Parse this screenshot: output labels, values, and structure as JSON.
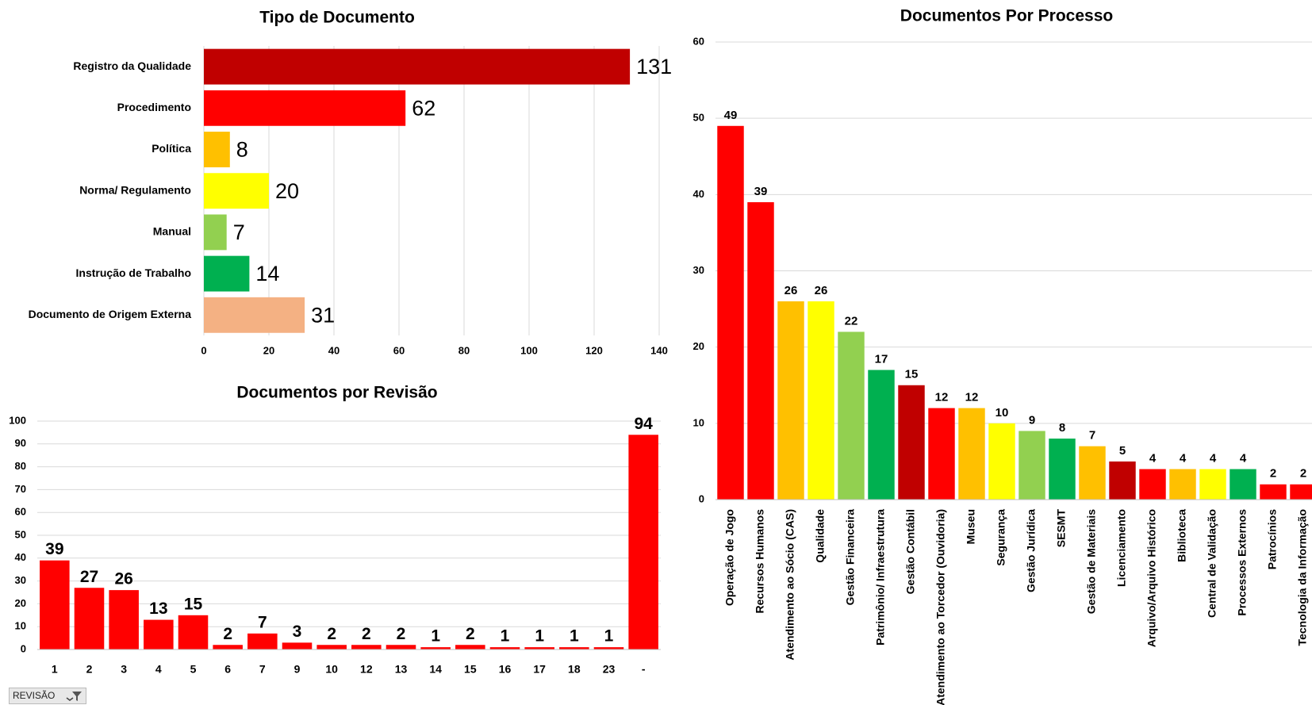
{
  "chart_data": [
    {
      "type": "barh",
      "title": "Tipo de Documento",
      "categories": [
        "Registro da Qualidade",
        "Procedimento",
        "Política",
        "Norma/ Regulamento",
        "Manual",
        "Instrução de Trabalho",
        "Documento de Origem Externa"
      ],
      "values": [
        131,
        62,
        8,
        20,
        7,
        14,
        31
      ],
      "colors": [
        "#c00000",
        "#ff0000",
        "#ffc000",
        "#ffff00",
        "#92d050",
        "#00b050",
        "#f4b183"
      ],
      "xlim": [
        0,
        140
      ],
      "xticks": [
        0,
        20,
        40,
        60,
        80,
        100,
        120,
        140
      ],
      "grid": true
    },
    {
      "type": "bar",
      "title": "Documentos por Revisão",
      "categories": [
        "1",
        "2",
        "3",
        "4",
        "5",
        "6",
        "7",
        "9",
        "10",
        "12",
        "13",
        "14",
        "15",
        "16",
        "17",
        "18",
        "23",
        "-"
      ],
      "values": [
        39,
        27,
        26,
        13,
        15,
        2,
        7,
        3,
        2,
        2,
        2,
        1,
        2,
        1,
        1,
        1,
        1,
        94
      ],
      "color": "#ff0000",
      "ylim": [
        0,
        100
      ],
      "yticks": [
        0,
        10,
        20,
        30,
        40,
        50,
        60,
        70,
        80,
        90,
        100
      ],
      "grid": true
    },
    {
      "type": "bar",
      "title": "Documentos Por Processo",
      "categories": [
        "Operação de Jogo",
        "Recursos Humanos",
        "Atendimento ao Sócio (CAS)",
        "Qualidade",
        "Gestão Financeira",
        "Patrimônio/ Infraestrutura",
        "Gestão Contábil",
        "Atendimento ao Torcedor (Ouvidoria)",
        "Museu",
        "Segurança",
        "Gestão Jurídica",
        "SESMT",
        "Gestão de Materiais",
        "Licenciamento",
        "Arquivo/Arquivo Histórico",
        "Biblioteca",
        "Central de Validação",
        "Processos Externos",
        "Patrocínios",
        "Tecnologia da Informação"
      ],
      "values": [
        49,
        39,
        26,
        26,
        22,
        17,
        15,
        12,
        12,
        10,
        9,
        8,
        7,
        5,
        4,
        4,
        4,
        4,
        2,
        2
      ],
      "colors": [
        "#ff0000",
        "#ff0000",
        "#ffc000",
        "#ffff00",
        "#92d050",
        "#00b050",
        "#c00000",
        "#ff0000",
        "#ffc000",
        "#ffff00",
        "#92d050",
        "#00b050",
        "#ffc000",
        "#c00000",
        "#ff0000",
        "#ffc000",
        "#ffff00",
        "#00b050",
        "#ff0000",
        "#ff0000"
      ],
      "ylim": [
        0,
        60
      ],
      "yticks": [
        0,
        10,
        20,
        30,
        40,
        50,
        60
      ],
      "grid": true
    }
  ],
  "filter": {
    "label": "REVISÃO"
  }
}
